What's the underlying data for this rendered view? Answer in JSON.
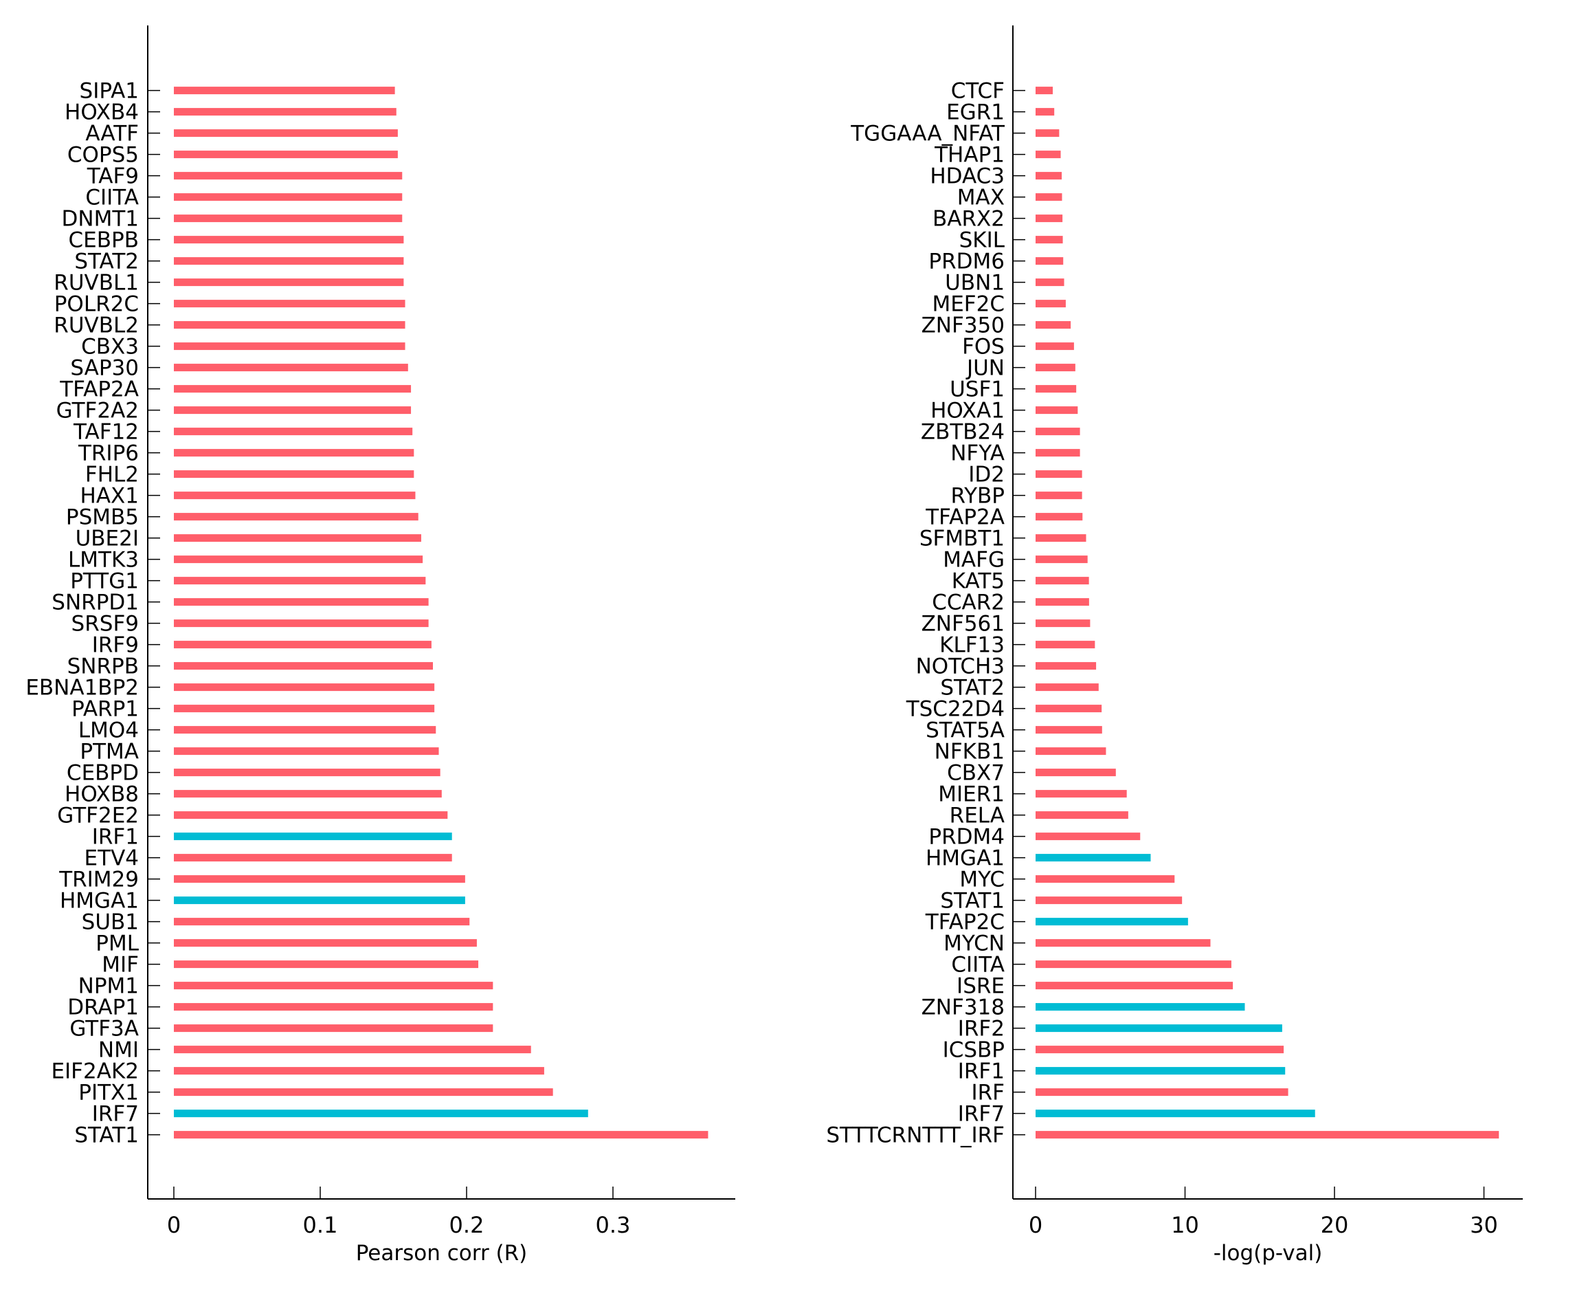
{
  "colors": {
    "positive": "#FF5E6A",
    "highlight": "#00BCD4"
  },
  "chart_data": [
    {
      "type": "bar",
      "orientation": "horizontal",
      "title": "",
      "xlabel": "Pearson corr (R)",
      "ylabel": "",
      "xlim": [
        0,
        0.38
      ],
      "xticks": [
        "0",
        "0.1",
        "0.2",
        "0.3"
      ],
      "xtick_values": [
        0,
        0.1,
        0.2,
        0.3
      ],
      "grid": false,
      "categories": [
        "SIPA1",
        "HOXB4",
        "AATF",
        "COPS5",
        "TAF9",
        "CIITA",
        "DNMT1",
        "CEBPB",
        "STAT2",
        "RUVBL1",
        "POLR2C",
        "RUVBL2",
        "CBX3",
        "SAP30",
        "TFAP2A",
        "GTF2A2",
        "TAF12",
        "TRIP6",
        "FHL2",
        "HAX1",
        "PSMB5",
        "UBE2I",
        "LMTK3",
        "PTTG1",
        "SNRPD1",
        "SRSF9",
        "IRF9",
        "SNRPB",
        "EBNA1BP2",
        "PARP1",
        "LMO4",
        "PTMA",
        "CEBPD",
        "HOXB8",
        "GTF2E2",
        "IRF1",
        "ETV4",
        "TRIM29",
        "HMGA1",
        "SUB1",
        "PML",
        "MIF",
        "NPM1",
        "DRAP1",
        "GTF3A",
        "NMI",
        "EIF2AK2",
        "PITX1",
        "IRF7",
        "STAT1"
      ],
      "values": [
        0.151,
        0.152,
        0.153,
        0.153,
        0.156,
        0.156,
        0.156,
        0.157,
        0.157,
        0.157,
        0.158,
        0.158,
        0.158,
        0.16,
        0.162,
        0.162,
        0.163,
        0.164,
        0.164,
        0.165,
        0.167,
        0.169,
        0.17,
        0.172,
        0.174,
        0.174,
        0.176,
        0.177,
        0.178,
        0.178,
        0.179,
        0.181,
        0.182,
        0.183,
        0.187,
        0.19,
        0.19,
        0.199,
        0.199,
        0.202,
        0.207,
        0.208,
        0.218,
        0.218,
        0.218,
        0.244,
        0.253,
        0.259,
        0.283,
        0.365
      ],
      "highlighted": [
        "IRF1",
        "HMGA1",
        "IRF7"
      ]
    },
    {
      "type": "bar",
      "orientation": "horizontal",
      "title": "",
      "xlabel": "-log(p-val)",
      "ylabel": "",
      "xlim": [
        0,
        32.6
      ],
      "xticks": [
        "0",
        "10",
        "20",
        "30"
      ],
      "xtick_values": [
        0,
        10,
        20,
        30
      ],
      "grid": false,
      "categories": [
        "CTCF",
        "EGR1",
        "TGGAAA_NFAT",
        "THAP1",
        "HDAC3",
        "MAX",
        "BARX2",
        "SKIL",
        "PRDM6",
        "UBN1",
        "MEF2C",
        "ZNF350",
        "FOS",
        "JUN",
        "USF1",
        "HOXA1",
        "ZBTB24",
        "NFYA",
        "ID2",
        "RYBP",
        "TFAP2A",
        "SFMBT1",
        "MAFG",
        "KAT5",
        "CCAR2",
        "ZNF561",
        "KLF13",
        "NOTCH3",
        "STAT2",
        "TSC22D4",
        "STAT5A",
        "NFKB1",
        "CBX7",
        "MIER1",
        "RELA",
        "PRDM4",
        "HMGA1",
        "MYC",
        "STAT1",
        "TFAP2C",
        "MYCN",
        "CIITA",
        "ISRE",
        "ZNF318",
        "IRF2",
        "ICSBP",
        "IRF1",
        "IRF",
        "IRF7",
        "STTTCRNTTT_IRF"
      ],
      "values": [
        1.15,
        1.25,
        1.58,
        1.68,
        1.75,
        1.77,
        1.8,
        1.82,
        1.85,
        1.91,
        2.02,
        2.35,
        2.57,
        2.66,
        2.72,
        2.82,
        2.97,
        2.97,
        3.11,
        3.11,
        3.14,
        3.38,
        3.48,
        3.57,
        3.58,
        3.65,
        3.97,
        4.05,
        4.22,
        4.42,
        4.45,
        4.71,
        5.37,
        6.1,
        6.2,
        7.0,
        7.7,
        9.3,
        9.8,
        10.2,
        11.7,
        13.1,
        13.2,
        14.0,
        16.5,
        16.6,
        16.7,
        16.9,
        18.7,
        31.0
      ],
      "highlighted": [
        "HMGA1",
        "TFAP2C",
        "ZNF318",
        "IRF2",
        "IRF1",
        "IRF7"
      ]
    }
  ]
}
